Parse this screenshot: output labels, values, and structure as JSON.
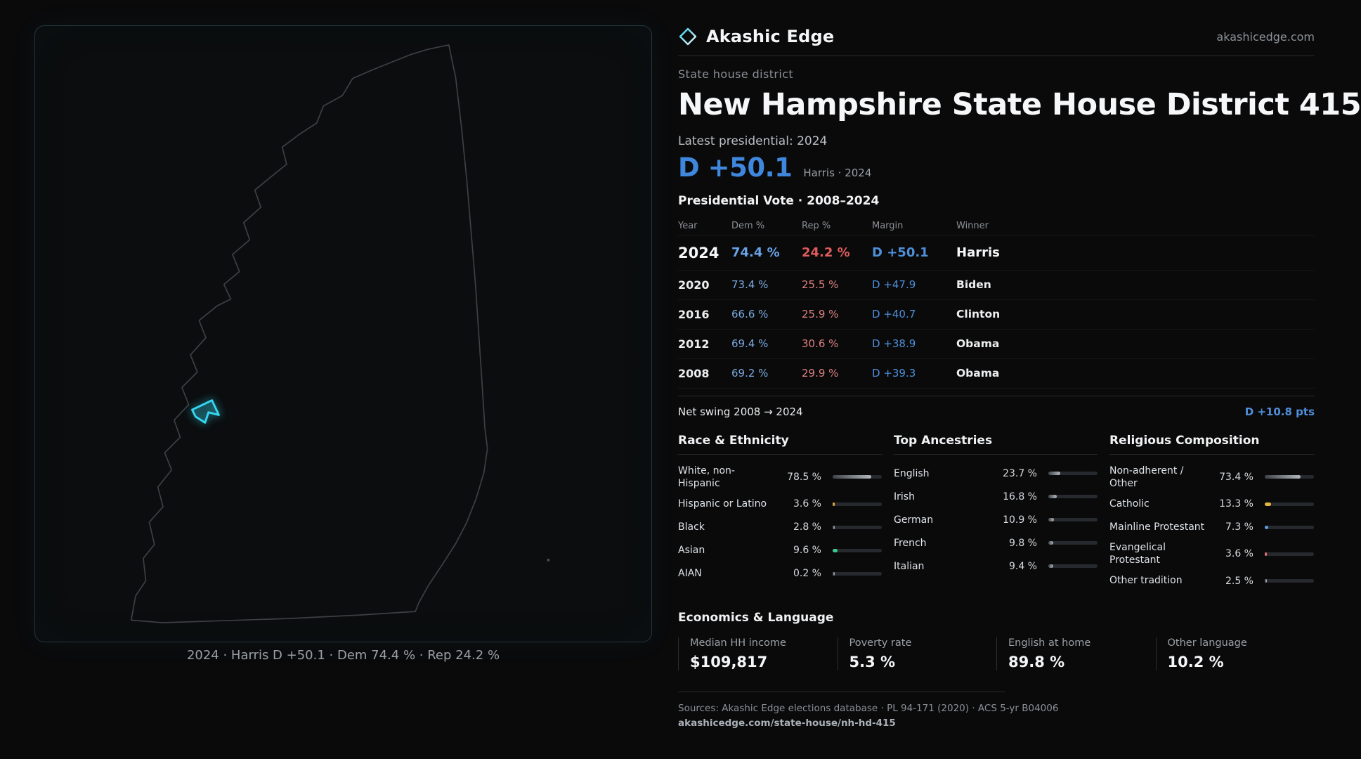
{
  "brand": {
    "name": "Akashic Edge",
    "domain": "akashicedge.com",
    "logo": "diamond-icon"
  },
  "page": {
    "kicker": "State house district",
    "title": "New Hampshire State House District 415",
    "latest_label": "Latest presidential: 2024",
    "headline_margin": "D +50.1",
    "headline_sub": "Harris · 2024"
  },
  "map": {
    "caption": "2024 · Harris D +50.1 · Dem 74.4 % · Rep 24.2 %",
    "outline_color": "#3c4044",
    "highlight_color": "#35d6f0"
  },
  "vote_table": {
    "title": "Presidential Vote · 2008–2024",
    "columns": [
      "Year",
      "Dem %",
      "Rep %",
      "Margin",
      "Winner"
    ],
    "rows": [
      {
        "year": "2024",
        "dem": "74.4 %",
        "rep": "24.2 %",
        "margin": "D +50.1",
        "winner": "Harris"
      },
      {
        "year": "2020",
        "dem": "73.4 %",
        "rep": "25.5 %",
        "margin": "D +47.9",
        "winner": "Biden"
      },
      {
        "year": "2016",
        "dem": "66.6 %",
        "rep": "25.9 %",
        "margin": "D +40.7",
        "winner": "Clinton"
      },
      {
        "year": "2012",
        "dem": "69.4 %",
        "rep": "30.6 %",
        "margin": "D +38.9",
        "winner": "Obama"
      },
      {
        "year": "2008",
        "dem": "69.2 %",
        "rep": "29.9 %",
        "margin": "D +39.3",
        "winner": "Obama"
      }
    ]
  },
  "net_swing": {
    "label": "Net swing 2008 → 2024",
    "value": "D +10.8 pts"
  },
  "demographics": [
    {
      "title": "Race & Ethnicity",
      "rows": [
        {
          "label": "White, non-Hispanic",
          "value": "78.5 %",
          "pct": 78.5
        },
        {
          "label": "Hispanic or Latino",
          "value": "3.6 %",
          "pct": 3.6,
          "color": "#dfa43f"
        },
        {
          "label": "Black",
          "value": "2.8 %",
          "pct": 2.8
        },
        {
          "label": "Asian",
          "value": "9.6 %",
          "pct": 9.6,
          "color": "#3ec98e"
        },
        {
          "label": "AIAN",
          "value": "0.2 %",
          "pct": 0.2
        }
      ]
    },
    {
      "title": "Top Ancestries",
      "rows": [
        {
          "label": "English",
          "value": "23.7 %",
          "pct": 23.7
        },
        {
          "label": "Irish",
          "value": "16.8 %",
          "pct": 16.8
        },
        {
          "label": "German",
          "value": "10.9 %",
          "pct": 10.9
        },
        {
          "label": "French",
          "value": "9.8 %",
          "pct": 9.8
        },
        {
          "label": "Italian",
          "value": "9.4 %",
          "pct": 9.4
        }
      ]
    },
    {
      "title": "Religious Composition",
      "rows": [
        {
          "label": "Non-adherent / Other",
          "value": "73.4 %",
          "pct": 73.4
        },
        {
          "label": "Catholic",
          "value": "13.3 %",
          "pct": 13.3,
          "color": "#e3b63f"
        },
        {
          "label": "Mainline Protestant",
          "value": "7.3 %",
          "pct": 7.3,
          "color": "#5e9be0"
        },
        {
          "label": "Evangelical Protestant",
          "value": "3.6 %",
          "pct": 3.6,
          "color": "#de6e6e"
        },
        {
          "label": "Other tradition",
          "value": "2.5 %",
          "pct": 2.5
        }
      ]
    }
  ],
  "economics": {
    "title": "Economics & Language",
    "stats": [
      {
        "label": "Median HH income",
        "value": "$109,817"
      },
      {
        "label": "Poverty rate",
        "value": "5.3 %"
      },
      {
        "label": "English at home",
        "value": "89.8 %"
      },
      {
        "label": "Other language",
        "value": "10.2 %"
      }
    ]
  },
  "footer": {
    "sources": "Sources: Akashic Edge elections database · PL 94-171 (2020) · ACS 5-yr B04006",
    "url": "akashicedge.com/state-house/nh-hd-415"
  },
  "colors": {
    "dem_blue": "#4f8fd9",
    "dem_blue_bright": "#69a4e8",
    "rep_red": "#de6e6e",
    "headline_blue": "#3f86dd",
    "accent_cyan": "#35d6f0",
    "bar_yellow": "#e3b63f",
    "bar_green": "#3ec98e",
    "bar_red": "#de6e6e"
  }
}
